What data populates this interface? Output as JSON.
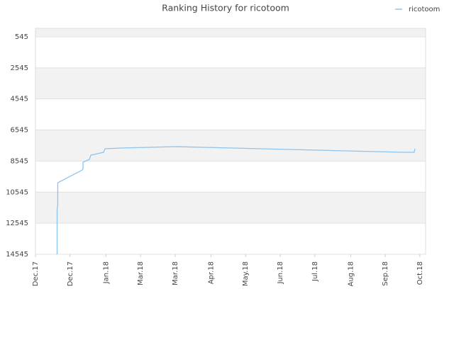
{
  "chart_data": {
    "type": "line",
    "title": "Ranking History for ricotoom",
    "x": [
      16.9,
      16.9,
      17.4,
      17.4,
      36.5,
      37.1,
      37.1,
      42.1,
      43.2,
      53.1,
      54.3,
      66.4,
      88.6,
      109.6,
      131.8,
      153.9,
      176.0,
      198.2,
      220.3,
      242.5,
      264.6,
      285.7,
      295.6,
      296.2
    ],
    "series": [
      {
        "name": "ricotoom",
        "color": "#8cc4ef",
        "values": [
          14545,
          11628,
          11400,
          9941,
          9120,
          9029,
          8618,
          8436,
          8162,
          7980,
          7752,
          7706,
          7661,
          7615,
          7661,
          7706,
          7752,
          7798,
          7843,
          7889,
          7934,
          7980,
          7980,
          7752
        ]
      }
    ],
    "xlim": [
      0,
      304.5
    ],
    "xticks": [
      {
        "value": 0,
        "label": "Dec.17"
      },
      {
        "value": 27,
        "label": "Dec.17"
      },
      {
        "value": 55,
        "label": "Jan.18"
      },
      {
        "value": 82,
        "label": "Mar.18"
      },
      {
        "value": 109,
        "label": "Mar.18"
      },
      {
        "value": 137,
        "label": "Apr.18"
      },
      {
        "value": 164,
        "label": "May.18"
      },
      {
        "value": 191,
        "label": "Jun.18"
      },
      {
        "value": 218,
        "label": "Jul.18"
      },
      {
        "value": 246,
        "label": "Aug.18"
      },
      {
        "value": 273,
        "label": "Sep.18"
      },
      {
        "value": 300,
        "label": "Oct.18"
      }
    ],
    "ylim": [
      14545,
      0
    ],
    "yticks": [
      545,
      2545,
      4545,
      6545,
      8545,
      10545,
      12545,
      14545
    ],
    "grid": true,
    "legend": "top-right"
  }
}
